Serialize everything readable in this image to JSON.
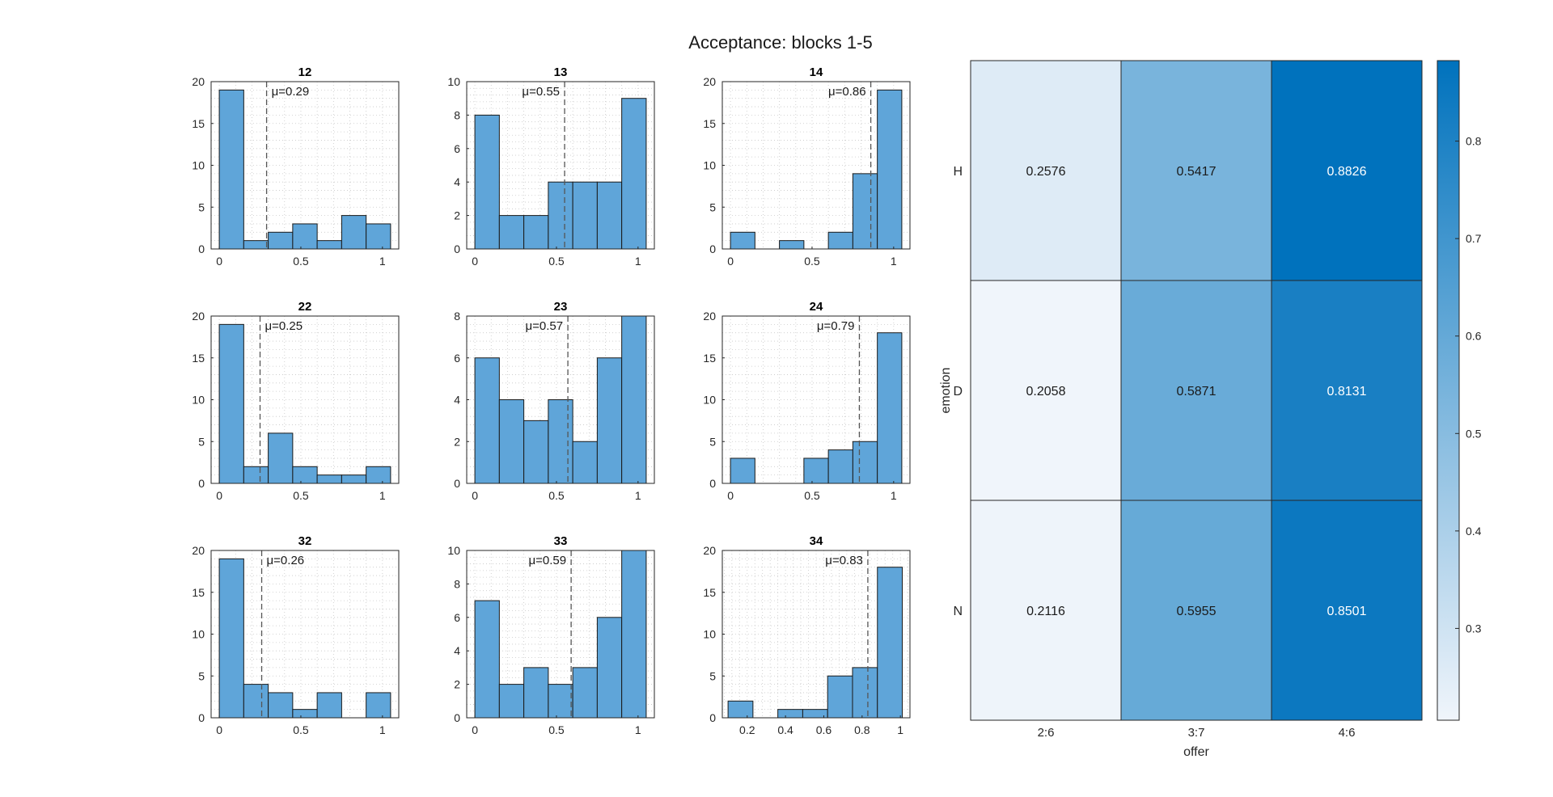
{
  "figure_title": "Acceptance: blocks 1-5",
  "colors": {
    "bar_fill": "#5fa5d9",
    "bar_stroke": "#1a1a1a",
    "mean_line": "#555555",
    "grid": "#c8c8c8",
    "cmap_low": "#f0f5fb",
    "cmap_high": "#0072bd"
  },
  "chart_data": [
    {
      "type": "bar",
      "title": "12",
      "mu_label": "μ=0.29",
      "mean": 0.29,
      "bins": [
        [
          0,
          0.15
        ],
        [
          0.15,
          0.3
        ],
        [
          0.3,
          0.45
        ],
        [
          0.45,
          0.6
        ],
        [
          0.6,
          0.75
        ],
        [
          0.75,
          0.9
        ],
        [
          0.9,
          1.05
        ]
      ],
      "values": [
        19,
        1,
        2,
        3,
        1,
        4,
        3
      ],
      "xlim": [
        -0.05,
        1.1
      ],
      "ylim": [
        0,
        20
      ],
      "xticks": [
        0,
        0.5,
        1
      ],
      "xtick_labels": [
        "0",
        "0.5",
        "1"
      ],
      "yticks": [
        0,
        5,
        10,
        15,
        20
      ],
      "ytick_labels": [
        "0",
        "5",
        "10",
        "15",
        "20"
      ]
    },
    {
      "type": "bar",
      "title": "13",
      "mu_label": "μ=0.55",
      "mean": 0.55,
      "bins": [
        [
          0,
          0.15
        ],
        [
          0.15,
          0.3
        ],
        [
          0.3,
          0.45
        ],
        [
          0.45,
          0.6
        ],
        [
          0.6,
          0.75
        ],
        [
          0.75,
          0.9
        ],
        [
          0.9,
          1.05
        ]
      ],
      "values": [
        8,
        2,
        2,
        4,
        4,
        4,
        9
      ],
      "xlim": [
        -0.05,
        1.1
      ],
      "ylim": [
        0,
        10
      ],
      "xticks": [
        0,
        0.5,
        1
      ],
      "xtick_labels": [
        "0",
        "0.5",
        "1"
      ],
      "yticks": [
        0,
        2,
        4,
        6,
        8,
        10
      ],
      "ytick_labels": [
        "0",
        "2",
        "4",
        "6",
        "8",
        "10"
      ]
    },
    {
      "type": "bar",
      "title": "14",
      "mu_label": "μ=0.86",
      "mean": 0.86,
      "bins": [
        [
          0,
          0.15
        ],
        [
          0.15,
          0.3
        ],
        [
          0.3,
          0.45
        ],
        [
          0.45,
          0.6
        ],
        [
          0.6,
          0.75
        ],
        [
          0.75,
          0.9
        ],
        [
          0.9,
          1.05
        ]
      ],
      "values": [
        2,
        0,
        1,
        0,
        2,
        9,
        19
      ],
      "xlim": [
        -0.05,
        1.1
      ],
      "ylim": [
        0,
        20
      ],
      "xticks": [
        0,
        0.5,
        1
      ],
      "xtick_labels": [
        "0",
        "0.5",
        "1"
      ],
      "yticks": [
        0,
        5,
        10,
        15,
        20
      ],
      "ytick_labels": [
        "0",
        "5",
        "10",
        "15",
        "20"
      ]
    },
    {
      "type": "bar",
      "title": "22",
      "mu_label": "μ=0.25",
      "mean": 0.25,
      "bins": [
        [
          0,
          0.15
        ],
        [
          0.15,
          0.3
        ],
        [
          0.3,
          0.45
        ],
        [
          0.45,
          0.6
        ],
        [
          0.6,
          0.75
        ],
        [
          0.75,
          0.9
        ],
        [
          0.9,
          1.05
        ]
      ],
      "values": [
        19,
        2,
        6,
        2,
        1,
        1,
        2
      ],
      "xlim": [
        -0.05,
        1.1
      ],
      "ylim": [
        0,
        20
      ],
      "xticks": [
        0,
        0.5,
        1
      ],
      "xtick_labels": [
        "0",
        "0.5",
        "1"
      ],
      "yticks": [
        0,
        5,
        10,
        15,
        20
      ],
      "ytick_labels": [
        "0",
        "5",
        "10",
        "15",
        "20"
      ]
    },
    {
      "type": "bar",
      "title": "23",
      "mu_label": "μ=0.57",
      "mean": 0.57,
      "bins": [
        [
          0,
          0.15
        ],
        [
          0.15,
          0.3
        ],
        [
          0.3,
          0.45
        ],
        [
          0.45,
          0.6
        ],
        [
          0.6,
          0.75
        ],
        [
          0.75,
          0.9
        ],
        [
          0.9,
          1.05
        ]
      ],
      "values": [
        6,
        4,
        3,
        4,
        2,
        6,
        8
      ],
      "xlim": [
        -0.05,
        1.1
      ],
      "ylim": [
        0,
        8
      ],
      "xticks": [
        0,
        0.5,
        1
      ],
      "xtick_labels": [
        "0",
        "0.5",
        "1"
      ],
      "yticks": [
        0,
        2,
        4,
        6,
        8
      ],
      "ytick_labels": [
        "0",
        "2",
        "4",
        "6",
        "8"
      ]
    },
    {
      "type": "bar",
      "title": "24",
      "mu_label": "μ=0.79",
      "mean": 0.79,
      "bins": [
        [
          0,
          0.15
        ],
        [
          0.15,
          0.3
        ],
        [
          0.3,
          0.45
        ],
        [
          0.45,
          0.6
        ],
        [
          0.6,
          0.75
        ],
        [
          0.75,
          0.9
        ],
        [
          0.9,
          1.05
        ]
      ],
      "values": [
        3,
        0,
        0,
        3,
        4,
        5,
        18
      ],
      "xlim": [
        -0.05,
        1.1
      ],
      "ylim": [
        0,
        20
      ],
      "xticks": [
        0,
        0.5,
        1
      ],
      "xtick_labels": [
        "0",
        "0.5",
        "1"
      ],
      "yticks": [
        0,
        5,
        10,
        15,
        20
      ],
      "ytick_labels": [
        "0",
        "5",
        "10",
        "15",
        "20"
      ]
    },
    {
      "type": "bar",
      "title": "32",
      "mu_label": "μ=0.26",
      "mean": 0.26,
      "bins": [
        [
          0,
          0.15
        ],
        [
          0.15,
          0.3
        ],
        [
          0.3,
          0.45
        ],
        [
          0.45,
          0.6
        ],
        [
          0.6,
          0.75
        ],
        [
          0.75,
          0.9
        ],
        [
          0.9,
          1.05
        ]
      ],
      "values": [
        19,
        4,
        3,
        1,
        3,
        0,
        3
      ],
      "xlim": [
        -0.05,
        1.1
      ],
      "ylim": [
        0,
        20
      ],
      "xticks": [
        0,
        0.5,
        1
      ],
      "xtick_labels": [
        "0",
        "0.5",
        "1"
      ],
      "yticks": [
        0,
        5,
        10,
        15,
        20
      ],
      "ytick_labels": [
        "0",
        "5",
        "10",
        "15",
        "20"
      ]
    },
    {
      "type": "bar",
      "title": "33",
      "mu_label": "μ=0.59",
      "mean": 0.59,
      "bins": [
        [
          0,
          0.15
        ],
        [
          0.15,
          0.3
        ],
        [
          0.3,
          0.45
        ],
        [
          0.45,
          0.6
        ],
        [
          0.6,
          0.75
        ],
        [
          0.75,
          0.9
        ],
        [
          0.9,
          1.05
        ]
      ],
      "values": [
        7,
        2,
        3,
        2,
        3,
        6,
        10
      ],
      "xlim": [
        -0.05,
        1.1
      ],
      "ylim": [
        0,
        10
      ],
      "xticks": [
        0,
        0.5,
        1
      ],
      "xtick_labels": [
        "0",
        "0.5",
        "1"
      ],
      "yticks": [
        0,
        2,
        4,
        6,
        8,
        10
      ],
      "ytick_labels": [
        "0",
        "2",
        "4",
        "6",
        "8",
        "10"
      ]
    },
    {
      "type": "bar",
      "title": "34",
      "mu_label": "μ=0.83",
      "mean": 0.83,
      "bins": [
        [
          0.1,
          0.23
        ],
        [
          0.23,
          0.36
        ],
        [
          0.36,
          0.49
        ],
        [
          0.49,
          0.62
        ],
        [
          0.62,
          0.75
        ],
        [
          0.75,
          0.88
        ],
        [
          0.88,
          1.01
        ]
      ],
      "values": [
        2,
        0,
        1,
        1,
        5,
        6,
        18
      ],
      "xlim": [
        0.07,
        1.05
      ],
      "ylim": [
        0,
        20
      ],
      "xticks": [
        0.2,
        0.4,
        0.6,
        0.8,
        1
      ],
      "xtick_labels": [
        "0.2",
        "0.4",
        "0.6",
        "0.8",
        "1"
      ],
      "yticks": [
        0,
        5,
        10,
        15,
        20
      ],
      "ytick_labels": [
        "0",
        "5",
        "10",
        "15",
        "20"
      ]
    },
    {
      "type": "heatmap",
      "x_categories": [
        "2:6",
        "3:7",
        "4:6"
      ],
      "y_categories": [
        "H",
        "D",
        "N"
      ],
      "values": [
        [
          0.2576,
          0.5417,
          0.8826
        ],
        [
          0.2058,
          0.5871,
          0.8131
        ],
        [
          0.2116,
          0.5955,
          0.8501
        ]
      ],
      "cell_labels": [
        [
          "0.2576",
          "0.5417",
          "0.8826"
        ],
        [
          "0.2058",
          "0.5871",
          "0.8131"
        ],
        [
          "0.2116",
          "0.5955",
          "0.8501"
        ]
      ],
      "xlabel": "offer",
      "ylabel": "emotion",
      "clim": [
        0.2058,
        0.8826
      ],
      "colorbar_ticks": [
        0.3,
        0.4,
        0.5,
        0.6,
        0.7,
        0.8
      ],
      "colorbar_tick_labels": [
        "0.3",
        "0.4",
        "0.5",
        "0.6",
        "0.7",
        "0.8"
      ]
    }
  ]
}
